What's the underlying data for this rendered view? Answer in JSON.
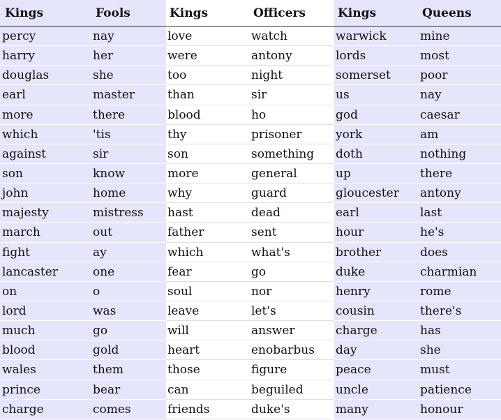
{
  "groups": [
    {
      "shaded": true,
      "columns": [
        {
          "header": "Kings",
          "words": [
            "percy",
            "harry",
            "douglas",
            "earl",
            "more",
            "which",
            "against",
            "son",
            "john",
            "majesty",
            "march",
            "fight",
            "lancaster",
            "on",
            "lord",
            "much",
            "blood",
            "wales",
            "prince",
            "charge"
          ]
        },
        {
          "header": "Fools",
          "words": [
            "nay",
            "her",
            "she",
            "master",
            "there",
            "'tis",
            "sir",
            "know",
            "home",
            "mistress",
            "out",
            "ay",
            "one",
            "o",
            "was",
            "go",
            "gold",
            "them",
            "bear",
            "comes"
          ]
        }
      ]
    },
    {
      "shaded": false,
      "columns": [
        {
          "header": "Kings",
          "words": [
            "love",
            "were",
            "too",
            "than",
            "blood",
            "thy",
            "son",
            "more",
            "why",
            "hast",
            "father",
            "which",
            "fear",
            "soul",
            "leave",
            "will",
            "heart",
            "those",
            "can",
            "friends"
          ]
        },
        {
          "header": "Officers",
          "words": [
            "watch",
            "antony",
            "night",
            "sir",
            "ho",
            "prisoner",
            "something",
            "general",
            "guard",
            "dead",
            "sent",
            "what's",
            "go",
            "nor",
            "let's",
            "answer",
            "enobarbus",
            "figure",
            "beguiled",
            "duke's"
          ]
        }
      ]
    },
    {
      "shaded": true,
      "columns": [
        {
          "header": "Kings",
          "words": [
            "warwick",
            "lords",
            "somerset",
            "us",
            "god",
            "york",
            "doth",
            "up",
            "gloucester",
            "earl",
            "hour",
            "brother",
            "duke",
            "henry",
            "cousin",
            "charge",
            "day",
            "peace",
            "uncle",
            "many"
          ]
        },
        {
          "header": "Queens",
          "words": [
            "mine",
            "most",
            "poor",
            "nay",
            "caesar",
            "am",
            "nothing",
            "there",
            "antony",
            "last",
            "he's",
            "does",
            "charmian",
            "rome",
            "there's",
            "has",
            "she",
            "must",
            "patience",
            "honour"
          ]
        }
      ]
    }
  ]
}
